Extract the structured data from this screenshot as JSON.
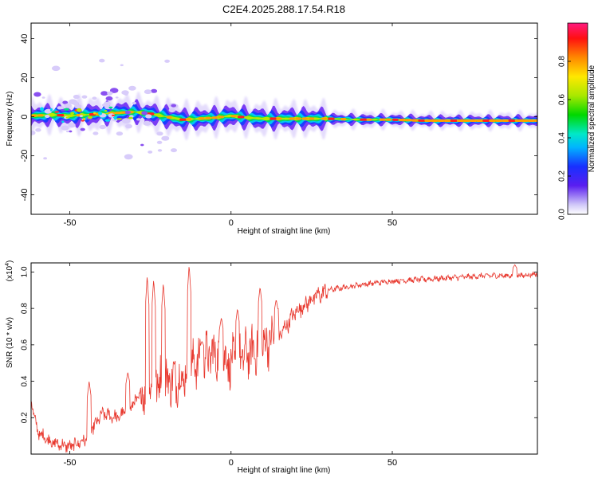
{
  "title": "C2E4.2025.288.17.54.R18",
  "chart_data": [
    {
      "type": "heatmap",
      "xlabel": "Height of straight line (km)",
      "ylabel": "Frequency (Hz)",
      "xlim": [
        -62,
        95
      ],
      "ylim": [
        -50,
        48
      ],
      "xticks": [
        -50,
        0,
        50
      ],
      "yticks": [
        -40,
        -20,
        0,
        20,
        40
      ],
      "ridge_freq": [
        [
          -62,
          0.5
        ],
        [
          -55,
          1.0
        ],
        [
          -50,
          0.5
        ],
        [
          -45,
          1.0
        ],
        [
          -40,
          1.5
        ],
        [
          -35,
          2.0
        ],
        [
          -30,
          2.5
        ],
        [
          -25,
          1.5
        ],
        [
          -20,
          0.0
        ],
        [
          -15,
          -1.5
        ],
        [
          -10,
          -1.0
        ],
        [
          -5,
          -0.5
        ],
        [
          0,
          0.5
        ],
        [
          5,
          -0.5
        ],
        [
          10,
          -1.0
        ],
        [
          20,
          -1.0
        ],
        [
          30,
          -1.0
        ],
        [
          40,
          -1.5
        ],
        [
          50,
          -1.5
        ],
        [
          60,
          -2.0
        ],
        [
          70,
          -2.0
        ],
        [
          80,
          -2.0
        ],
        [
          95,
          -2.0
        ]
      ],
      "colorbar": {
        "label": "Normalized spectral amplitude",
        "ticks": [
          "0.0",
          "0.2",
          "0.4",
          "0.6",
          "0.8"
        ],
        "range": [
          0,
          1
        ]
      }
    },
    {
      "type": "line",
      "xlabel": "Height of straight line (km)",
      "ylabel": "SNR (10 * v/v)",
      "multiplier": "(x10",
      "multiplier_exp": "4",
      "multiplier_close": ")",
      "xlim": [
        -62,
        95
      ],
      "ylim": [
        0,
        1.05
      ],
      "xticks": [
        -50,
        0,
        50
      ],
      "yticks": [
        "0.2",
        "0.4",
        "0.6",
        "0.8",
        "1.0"
      ],
      "trend": [
        [
          -62,
          0.3
        ],
        [
          -60,
          0.12
        ],
        [
          -55,
          0.06
        ],
        [
          -50,
          0.04
        ],
        [
          -45,
          0.08
        ],
        [
          -40,
          0.22
        ],
        [
          -35,
          0.2
        ],
        [
          -30,
          0.28
        ],
        [
          -25,
          0.4
        ],
        [
          -20,
          0.4
        ],
        [
          -15,
          0.42
        ],
        [
          -10,
          0.52
        ],
        [
          -5,
          0.55
        ],
        [
          0,
          0.5
        ],
        [
          5,
          0.55
        ],
        [
          10,
          0.6
        ],
        [
          15,
          0.65
        ],
        [
          20,
          0.78
        ],
        [
          25,
          0.85
        ],
        [
          30,
          0.9
        ],
        [
          40,
          0.93
        ],
        [
          50,
          0.95
        ],
        [
          60,
          0.96
        ],
        [
          70,
          0.97
        ],
        [
          80,
          0.98
        ],
        [
          90,
          0.98
        ],
        [
          95,
          0.99
        ]
      ],
      "peaks": [
        [
          -44,
          0.4
        ],
        [
          -32,
          0.45
        ],
        [
          -26,
          0.98
        ],
        [
          -24,
          0.96
        ],
        [
          -21,
          0.94
        ],
        [
          -13,
          1.04
        ],
        [
          -9,
          0.62
        ],
        [
          -3,
          0.75
        ],
        [
          2,
          0.8
        ],
        [
          9,
          0.92
        ],
        [
          14,
          0.85
        ],
        [
          88,
          1.04
        ]
      ],
      "color": "#e8382e"
    }
  ]
}
